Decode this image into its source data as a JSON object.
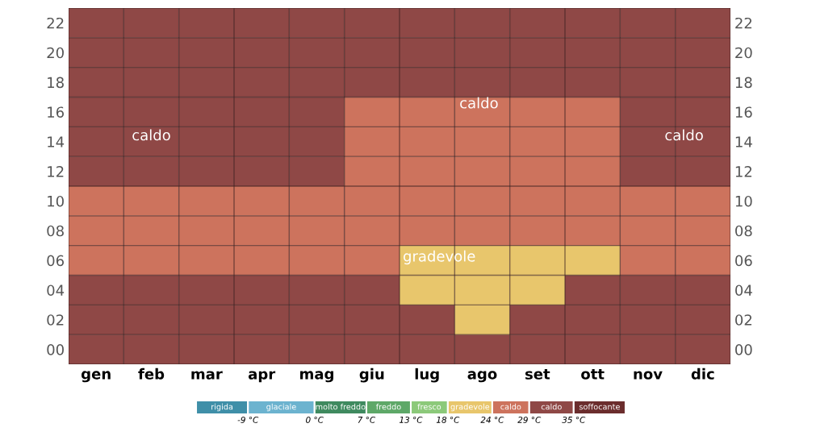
{
  "chart_data": {
    "type": "heatmap",
    "categories": [
      "gen",
      "feb",
      "mar",
      "apr",
      "mag",
      "giu",
      "lug",
      "ago",
      "set",
      "ott",
      "nov",
      "dic"
    ],
    "y_categories": [
      "22",
      "20",
      "18",
      "16",
      "14",
      "12",
      "10",
      "08",
      "06",
      "04",
      "02",
      "00"
    ],
    "y2_categories": [
      "22",
      "20",
      "18",
      "16",
      "14",
      "12",
      "10",
      "08",
      "06",
      "04",
      "02",
      "00"
    ],
    "cells": [
      [
        32,
        32,
        32,
        32,
        32,
        32,
        32,
        32,
        32,
        32,
        32,
        32
      ],
      [
        32,
        32,
        32,
        32,
        32,
        32,
        32,
        32,
        32,
        32,
        32,
        32
      ],
      [
        32,
        32,
        32,
        32,
        32,
        32,
        32,
        32,
        32,
        32,
        32,
        32
      ],
      [
        32,
        32,
        32,
        32,
        32,
        26.5,
        26.5,
        26.5,
        26.5,
        26.5,
        32,
        32
      ],
      [
        32,
        32,
        32,
        32,
        32,
        26.5,
        26.5,
        26.5,
        26.5,
        26.5,
        32,
        32
      ],
      [
        32,
        32,
        32,
        32,
        32,
        26.5,
        26.5,
        26.5,
        26.5,
        26.5,
        32,
        32
      ],
      [
        26.5,
        26.5,
        26.5,
        26.5,
        26.5,
        26.5,
        26.5,
        26.5,
        26.5,
        26.5,
        26.5,
        26.5
      ],
      [
        26.5,
        26.5,
        26.5,
        26.5,
        26.5,
        26.5,
        26.5,
        26.5,
        26.5,
        26.5,
        26.5,
        26.5
      ],
      [
        26.5,
        26.5,
        26.5,
        26.5,
        26.5,
        26.5,
        21,
        21,
        21,
        21,
        26.5,
        26.5
      ],
      [
        32,
        32,
        32,
        32,
        32,
        32,
        21,
        21,
        21,
        32,
        32,
        32
      ],
      [
        32,
        32,
        32,
        32,
        32,
        32,
        32,
        21,
        32,
        32,
        32,
        32
      ],
      [
        32,
        32,
        32,
        32,
        32,
        32,
        32,
        32,
        32,
        32,
        32,
        32
      ]
    ],
    "colors": [
      "#3f8fa8",
      "#6cb3cf",
      "#3f8a5f",
      "#5ea868",
      "#8cc97a",
      "#e8c66c",
      "#cd735d",
      "#8f4846",
      "#6b2d2d"
    ],
    "clim": [
      -16,
      42
    ],
    "cticks": [
      {
        "value": -9,
        "label": "-9 °C"
      },
      {
        "value": 0,
        "label": "0 °C"
      },
      {
        "value": 7,
        "label": "7 °C"
      },
      {
        "value": 13,
        "label": "13 °C"
      },
      {
        "value": 18,
        "label": "18 °C"
      },
      {
        "value": 24,
        "label": "24 °C"
      },
      {
        "value": 29,
        "label": "29 °C"
      },
      {
        "value": 35,
        "label": "35 °C"
      }
    ],
    "annotations": [
      "caldo",
      "caldo",
      "caldo",
      "gradevole",
      "rigida",
      "glaciale",
      "molto freddo",
      "freddo",
      "fresco",
      "gradevole",
      "caldo",
      "caldo",
      "soffocante"
    ],
    "grid": true
  }
}
